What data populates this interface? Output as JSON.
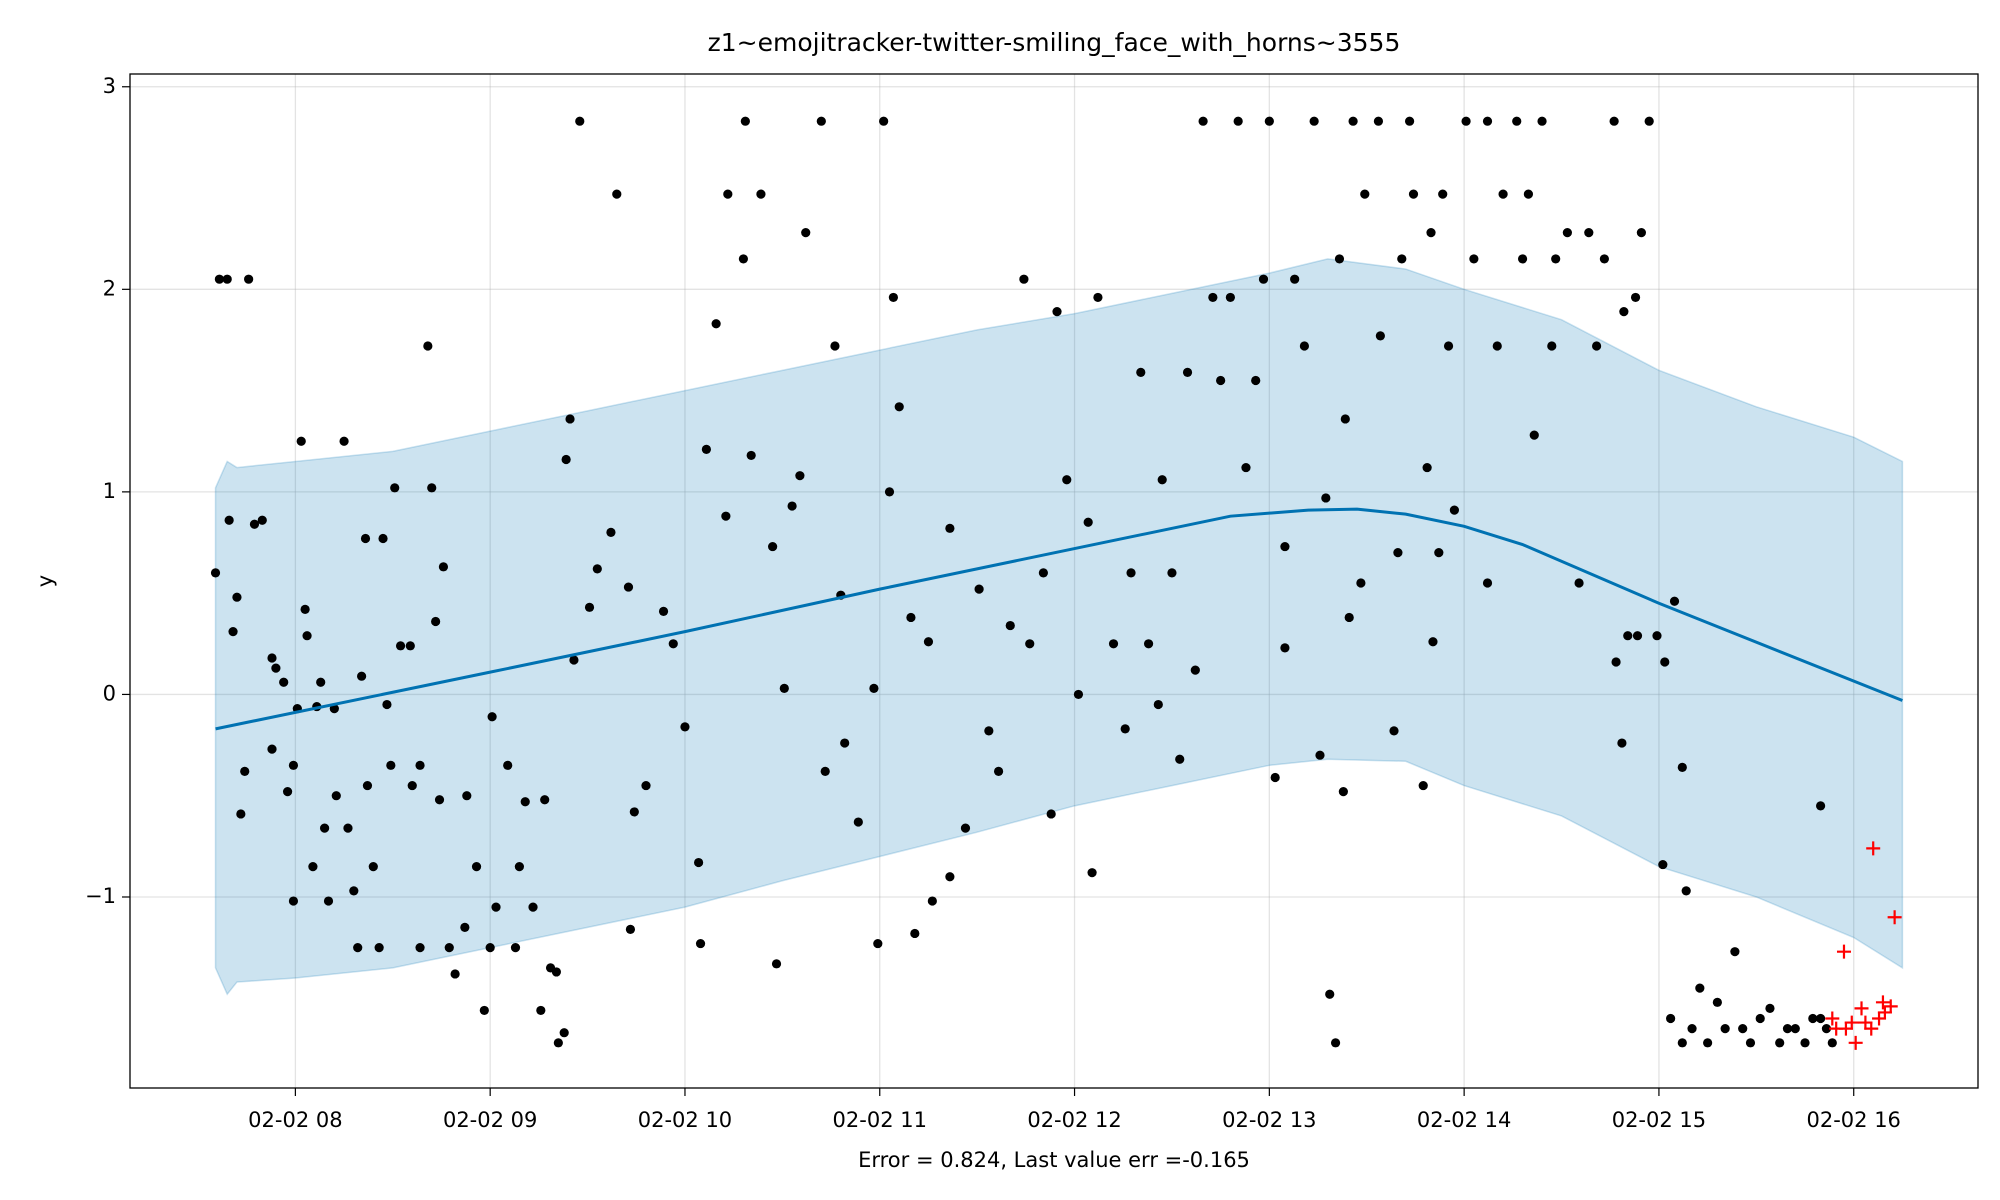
{
  "chart_data": {
    "type": "forecast",
    "title": "z1~emojitracker-twitter-smiling_face_with_horns~3555",
    "y_label": "y",
    "x_label": "Error = 0.824, Last value err =-0.165",
    "xlim": [
      7.151,
      16.638
    ],
    "ylim": [
      -1.943,
      3.063
    ],
    "xticks": [
      {
        "value": 8,
        "label": "02-02 08"
      },
      {
        "value": 9,
        "label": "02-02 09"
      },
      {
        "value": 10,
        "label": "02-02 10"
      },
      {
        "value": 11,
        "label": "02-02 11"
      },
      {
        "value": 12,
        "label": "02-02 12"
      },
      {
        "value": 13,
        "label": "02-02 13"
      },
      {
        "value": 14,
        "label": "02-02 14"
      },
      {
        "value": 15,
        "label": "02-02 15"
      },
      {
        "value": 16,
        "label": "02-02 16"
      }
    ],
    "yticks": [
      {
        "value": -1,
        "label": "−1"
      },
      0,
      1,
      2,
      3
    ],
    "grid": true,
    "interval": {
      "color": "#0072b2",
      "x": [
        7.59,
        7.65,
        7.7,
        8.0,
        8.5,
        9.0,
        9.5,
        10.0,
        10.5,
        11.0,
        11.5,
        12.0,
        12.5,
        13.0,
        13.3,
        13.7,
        14.0,
        14.5,
        15.0,
        15.5,
        16.0,
        16.25
      ],
      "upper": [
        1.02,
        1.15,
        1.12,
        1.15,
        1.2,
        1.3,
        1.4,
        1.5,
        1.6,
        1.7,
        1.8,
        1.88,
        1.98,
        2.08,
        2.15,
        2.1,
        2.0,
        1.85,
        1.6,
        1.42,
        1.27,
        1.15
      ],
      "lower": [
        -1.35,
        -1.48,
        -1.42,
        -1.4,
        -1.35,
        -1.25,
        -1.15,
        -1.05,
        -0.92,
        -0.8,
        -0.68,
        -0.55,
        -0.45,
        -0.35,
        -0.32,
        -0.33,
        -0.45,
        -0.6,
        -0.85,
        -1.0,
        -1.2,
        -1.35
      ]
    },
    "forecast": {
      "color": "#0072b2",
      "x": [
        7.59,
        9.0,
        10.0,
        11.0,
        12.0,
        12.8,
        13.2,
        13.45,
        13.7,
        14.0,
        14.3,
        15.0,
        16.25
      ],
      "values": [
        -0.17,
        0.11,
        0.31,
        0.52,
        0.72,
        0.88,
        0.91,
        0.915,
        0.89,
        0.83,
        0.74,
        0.45,
        -0.03
      ]
    },
    "observed": {
      "color": "#000000",
      "x": [
        7.59,
        7.61,
        7.65,
        7.66,
        7.68,
        7.7,
        7.72,
        7.74,
        7.76,
        7.79,
        7.83,
        7.88,
        7.9,
        7.88,
        7.94,
        7.96,
        7.99,
        7.99,
        8.01,
        8.03,
        8.05,
        8.06,
        8.09,
        8.11,
        8.13,
        8.15,
        8.17,
        8.2,
        8.21,
        8.25,
        8.27,
        8.3,
        8.32,
        8.34,
        8.36,
        8.37,
        8.4,
        8.43,
        8.45,
        8.47,
        8.49,
        8.51,
        8.54,
        8.59,
        8.6,
        8.64,
        8.64,
        8.68,
        8.7,
        8.72,
        8.74,
        8.76,
        8.79,
        8.82,
        8.88,
        8.87,
        8.93,
        8.97,
        9.0,
        9.01,
        9.03,
        9.09,
        9.13,
        9.15,
        9.18,
        9.22,
        9.26,
        9.28,
        9.31,
        9.34,
        9.35,
        9.38,
        9.39,
        9.41,
        9.43,
        9.46,
        9.51,
        9.55,
        9.62,
        9.65,
        9.71,
        9.74,
        9.72,
        9.8,
        9.89,
        9.94,
        10.0,
        10.07,
        10.08,
        10.11,
        10.16,
        10.21,
        10.22,
        10.3,
        10.31,
        10.34,
        10.39,
        10.45,
        10.47,
        10.51,
        10.55,
        10.59,
        10.62,
        10.7,
        10.72,
        10.77,
        10.8,
        10.82,
        10.89,
        10.97,
        10.99,
        11.02,
        11.05,
        11.07,
        11.1,
        11.16,
        11.18,
        11.25,
        11.27,
        11.36,
        11.36,
        11.44,
        11.51,
        11.56,
        11.61,
        11.67,
        11.74,
        11.77,
        11.84,
        11.88,
        11.91,
        11.96,
        12.02,
        12.07,
        12.09,
        12.12,
        12.2,
        12.26,
        12.29,
        12.34,
        12.38,
        12.43,
        12.45,
        12.5,
        12.54,
        12.58,
        12.62,
        12.66,
        12.71,
        12.75,
        12.8,
        12.84,
        12.88,
        12.93,
        12.97,
        13.0,
        13.03,
        13.08,
        13.08,
        13.13,
        13.18,
        13.23,
        13.26,
        13.29,
        13.31,
        13.34,
        13.36,
        13.38,
        13.39,
        13.41,
        13.43,
        13.47,
        13.49,
        13.56,
        13.57,
        13.64,
        13.66,
        13.68,
        13.72,
        13.74,
        13.79,
        13.81,
        13.83,
        13.84,
        13.87,
        13.89,
        13.92,
        13.95,
        14.01,
        14.05,
        14.12,
        14.12,
        14.17,
        14.2,
        14.27,
        14.3,
        14.33,
        14.36,
        14.4,
        14.45,
        14.47,
        14.53,
        14.59,
        14.64,
        14.68,
        14.72,
        14.77,
        14.78,
        14.81,
        14.82,
        14.84,
        14.88,
        14.89,
        14.91,
        14.95,
        14.99,
        15.03,
        15.02,
        15.08,
        15.12,
        15.14,
        15.06,
        15.12,
        15.17,
        15.21,
        15.25,
        15.3,
        15.34,
        15.39,
        15.43,
        15.47,
        15.52,
        15.57,
        15.62,
        15.66,
        15.7,
        15.75,
        15.79,
        15.83,
        15.83,
        15.86,
        15.89
      ],
      "values": [
        0.6,
        2.05,
        2.05,
        0.86,
        0.31,
        0.48,
        -0.59,
        -0.38,
        2.05,
        0.84,
        0.86,
        0.18,
        0.13,
        -0.27,
        0.06,
        -0.48,
        -1.02,
        -0.35,
        -0.07,
        1.25,
        0.42,
        0.29,
        -0.85,
        -0.06,
        0.06,
        -0.66,
        -1.02,
        -0.07,
        -0.5,
        1.25,
        -0.66,
        -0.97,
        -1.25,
        0.09,
        0.77,
        -0.45,
        -0.85,
        -1.25,
        0.77,
        -0.05,
        -0.35,
        1.02,
        0.24,
        0.24,
        -0.45,
        -0.35,
        -1.25,
        1.72,
        1.02,
        0.36,
        -0.52,
        0.63,
        -1.25,
        -1.38,
        -0.5,
        -1.15,
        -0.85,
        -1.56,
        -1.25,
        -0.11,
        -1.05,
        -0.35,
        -1.25,
        -0.85,
        -0.53,
        -1.05,
        -1.56,
        -0.52,
        -1.35,
        -1.37,
        -1.72,
        -1.67,
        1.16,
        1.36,
        0.17,
        2.83,
        0.43,
        0.62,
        0.8,
        2.47,
        0.53,
        -0.58,
        -1.16,
        -0.45,
        0.41,
        0.25,
        -0.16,
        -0.83,
        -1.23,
        1.21,
        1.83,
        0.88,
        2.47,
        2.15,
        2.83,
        1.18,
        2.47,
        0.73,
        -1.33,
        0.03,
        0.93,
        1.08,
        2.28,
        2.83,
        -0.38,
        1.72,
        0.49,
        -0.24,
        -0.63,
        0.03,
        -1.23,
        2.83,
        1.0,
        1.96,
        1.42,
        0.38,
        -1.18,
        0.26,
        -1.02,
        0.82,
        -0.9,
        -0.66,
        0.52,
        -0.18,
        -0.38,
        0.34,
        2.05,
        0.25,
        0.6,
        -0.59,
        1.89,
        1.06,
        0.0,
        0.85,
        -0.88,
        1.96,
        0.25,
        -0.17,
        0.6,
        1.59,
        0.25,
        -0.05,
        1.06,
        0.6,
        -0.32,
        1.59,
        0.12,
        2.83,
        1.96,
        1.55,
        1.96,
        2.83,
        1.12,
        1.55,
        2.05,
        2.83,
        -0.41,
        0.73,
        0.23,
        2.05,
        1.72,
        2.83,
        -0.3,
        0.97,
        -1.48,
        -1.72,
        2.15,
        -0.48,
        1.36,
        0.38,
        2.83,
        0.55,
        2.47,
        2.83,
        1.77,
        -0.18,
        0.7,
        2.15,
        2.83,
        2.47,
        -0.45,
        1.12,
        2.28,
        0.26,
        0.7,
        2.47,
        1.72,
        0.91,
        2.83,
        2.15,
        2.83,
        0.55,
        1.72,
        2.47,
        2.83,
        2.15,
        2.47,
        1.28,
        2.83,
        1.72,
        2.15,
        2.28,
        0.55,
        2.28,
        1.72,
        2.15,
        2.83,
        0.16,
        -0.24,
        1.89,
        0.29,
        1.96,
        0.29,
        2.28,
        2.83,
        0.29,
        0.16,
        -0.84,
        0.46,
        -0.36,
        -0.97,
        -1.6,
        -1.72,
        -1.65,
        -1.45,
        -1.72,
        -1.52,
        -1.65,
        -1.27,
        -1.65,
        -1.72,
        -1.6,
        -1.55,
        -1.72,
        -1.65,
        -1.65,
        -1.72,
        -1.6,
        -0.55,
        -1.6,
        -1.65,
        -1.72
      ]
    },
    "test": {
      "color": "#ff0000",
      "x": [
        15.89,
        15.91,
        15.95,
        15.96,
        15.99,
        16.01,
        16.04,
        16.06,
        16.09,
        16.1,
        16.13,
        16.15,
        16.16,
        16.19,
        16.21
      ],
      "values": [
        -1.6,
        -1.65,
        -1.27,
        -1.65,
        -1.62,
        -1.72,
        -1.55,
        -1.62,
        -1.65,
        -0.76,
        -1.6,
        -1.52,
        -1.57,
        -1.54,
        -1.1
      ]
    }
  }
}
